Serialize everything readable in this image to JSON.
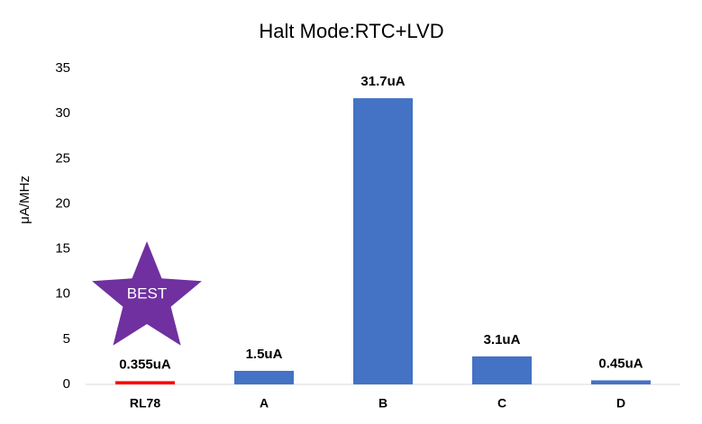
{
  "chart_data": {
    "type": "bar",
    "title": "Halt Mode:RTC+LVD",
    "y_label": "μA/MHz",
    "categories": [
      "RL78",
      "A",
      "B",
      "C",
      "D"
    ],
    "values": [
      0.355,
      1.5,
      31.7,
      3.1,
      0.45
    ],
    "value_labels": [
      "0.355uA",
      "1.5uA",
      "31.7uA",
      "3.1uA",
      "0.45uA"
    ],
    "colors": [
      "#ff0000",
      "#4472c4",
      "#4472c4",
      "#4472c4",
      "#4472c4"
    ],
    "ylim": [
      0,
      35
    ],
    "yticks": [
      0,
      5,
      10,
      15,
      20,
      25,
      30,
      35
    ],
    "grid": false,
    "annotation": "BEST"
  }
}
